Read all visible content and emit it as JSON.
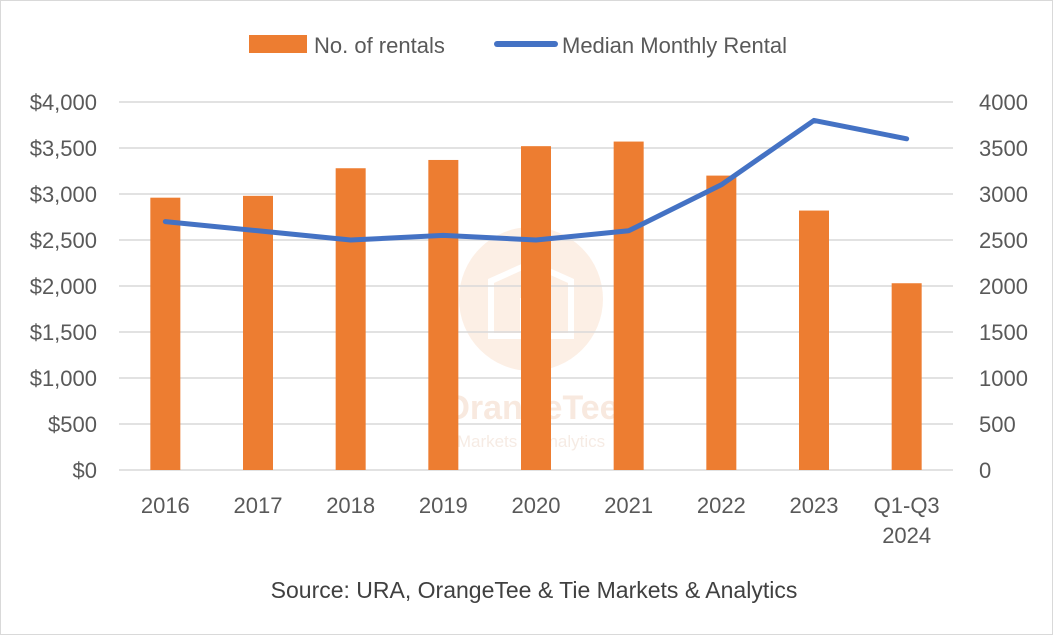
{
  "chart_data": {
    "type": "bar",
    "categories": [
      "2016",
      "2017",
      "2018",
      "2019",
      "2020",
      "2021",
      "2022",
      "2023",
      "Q1-Q3 2024"
    ],
    "series": [
      {
        "name": "No. of rentals",
        "type": "bar",
        "axis": "right",
        "color": "#ed7d31",
        "values": [
          2960,
          2980,
          3280,
          3370,
          3520,
          3570,
          3200,
          2820,
          2030
        ]
      },
      {
        "name": "Median Monthly Rental",
        "type": "line",
        "axis": "left",
        "color": "#4472c4",
        "values": [
          2700,
          2600,
          2500,
          2550,
          2500,
          2600,
          3100,
          3800,
          3600
        ]
      }
    ],
    "left_axis": {
      "ylim": [
        0,
        4000
      ],
      "ticks": [
        "$0",
        "$500",
        "$1,000",
        "$1,500",
        "$2,000",
        "$2,500",
        "$3,000",
        "$3,500",
        "$4,000"
      ]
    },
    "right_axis": {
      "ylim": [
        0,
        4000
      ],
      "ticks": [
        "0",
        "500",
        "1000",
        "1500",
        "2000",
        "2500",
        "3000",
        "3500",
        "4000"
      ]
    },
    "grid": true,
    "legend_position": "top",
    "source": "Source: URA, OrangeTee & Tie Markets & Analytics"
  },
  "watermark": {
    "title": "OrangeTee",
    "subtitle": "Markets & Analytics"
  }
}
